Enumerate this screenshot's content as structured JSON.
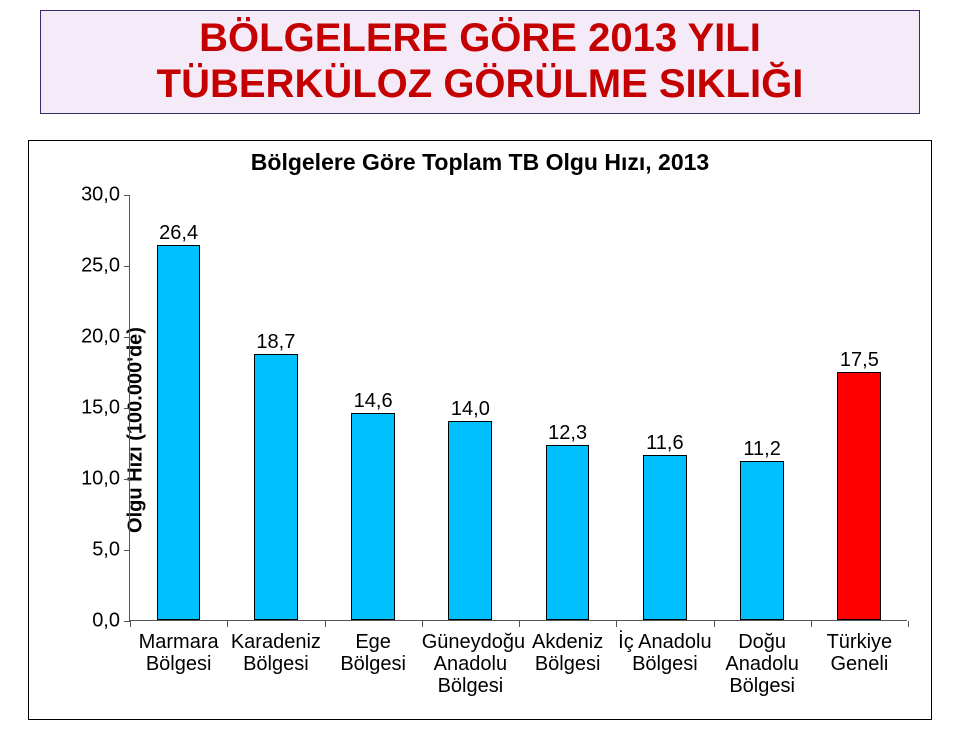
{
  "title": {
    "line1": "BÖLGELERE GÖRE 2013 YILI",
    "line2": "TÜBERKÜLOZ GÖRÜLME SIKLIĞI",
    "text_color": "#c40000",
    "border_color": "#3a2a70",
    "background_color": "#f4eaf8",
    "fontsize": 40
  },
  "chart": {
    "type": "bar",
    "title": "Bölgelere Göre Toplam TB Olgu Hızı, 2013",
    "title_fontsize": 23,
    "ylabel": "Olgu Hızı (100.000'de)",
    "label_fontsize": 20,
    "ylim": [
      0,
      30
    ],
    "ytick_step": 5,
    "yticks": [
      "0,0",
      "5,0",
      "10,0",
      "15,0",
      "20,0",
      "25,0",
      "30,0"
    ],
    "categories": [
      [
        "Marmara",
        "Bölgesi"
      ],
      [
        "Karadeniz",
        "Bölgesi"
      ],
      [
        "Ege",
        "Bölgesi"
      ],
      [
        "Güneydoğu",
        "Anadolu",
        "Bölgesi"
      ],
      [
        "Akdeniz",
        "Bölgesi"
      ],
      [
        "İç Anadolu",
        "Bölgesi"
      ],
      [
        "Doğu",
        "Anadolu",
        "Bölgesi"
      ],
      [
        "Türkiye",
        "Geneli"
      ]
    ],
    "values": [
      26.4,
      18.7,
      14.6,
      14.0,
      12.3,
      11.6,
      11.2,
      17.5
    ],
    "value_labels": [
      "26,4",
      "18,7",
      "14,6",
      "14,0",
      "12,3",
      "11,6",
      "11,2",
      "17,5"
    ],
    "bar_colors": [
      "#00c0ff",
      "#00c0ff",
      "#00c0ff",
      "#00c0ff",
      "#00c0ff",
      "#00c0ff",
      "#00c0ff",
      "#ff0000"
    ],
    "bar_border_color": "#000000",
    "bar_width": 0.45,
    "background_color": "#ffffff",
    "axis_color": "#555555",
    "tick_fontsize": 20,
    "value_fontsize": 20,
    "frame_border_color": "#000000"
  }
}
